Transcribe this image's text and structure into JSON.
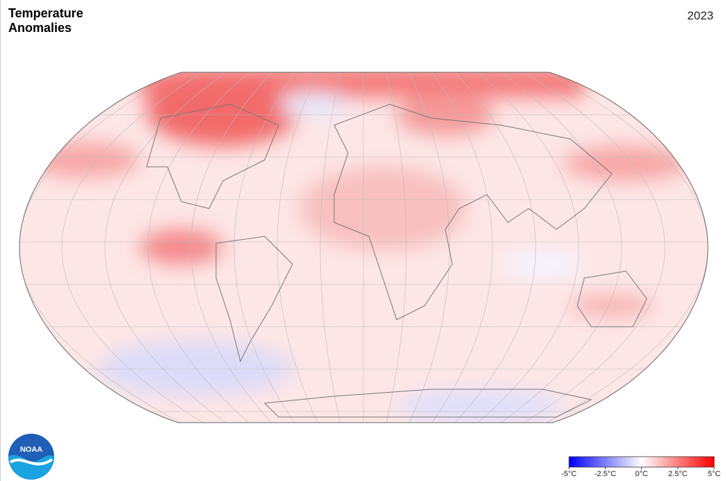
{
  "header": {
    "title": "Temperature Anomalies",
    "year": "2023"
  },
  "logo": "NOAA",
  "legend": {
    "lim": [
      -5,
      5
    ],
    "colors": [
      "#0000ff",
      "#ffffff",
      "#ff0000"
    ],
    "ticks": [
      {
        "value": -5,
        "label": "-5°C"
      },
      {
        "value": -2.5,
        "label": "-2.5°C"
      },
      {
        "value": 0,
        "label": "0°C"
      },
      {
        "value": 2.5,
        "label": "2.5°C"
      },
      {
        "value": 5,
        "label": "5°C"
      }
    ]
  }
}
